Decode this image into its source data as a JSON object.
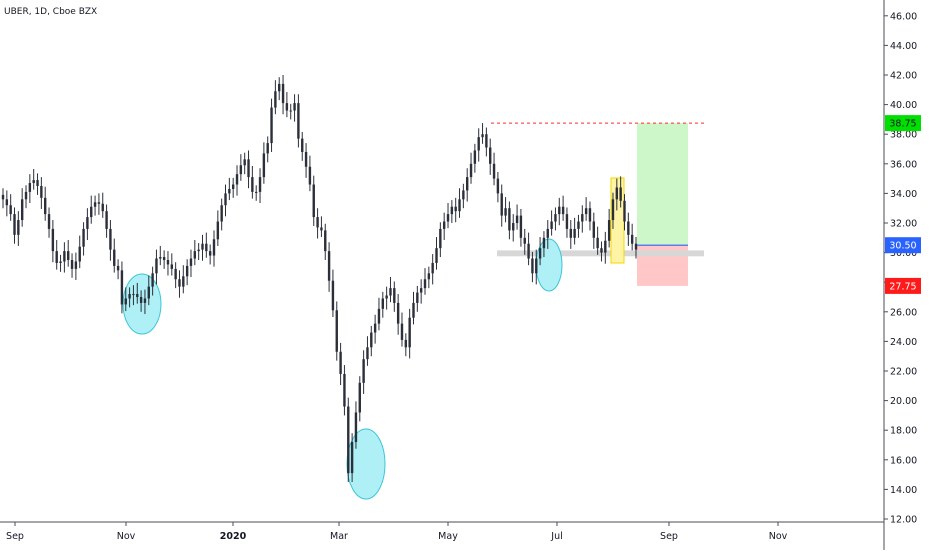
{
  "header": {
    "title": "UBER, 1D, Cboe BZX"
  },
  "colors": {
    "background": "#ffffff",
    "candle": "#2b2f3a",
    "axis_text": "#131722",
    "axis_line": "#4a4e5a",
    "target_label_bg": "#00e000",
    "price_label_bg": "#2962ff",
    "stop_label_bg": "#ff1a1a",
    "profit_zone": "#cdf7c8",
    "loss_zone": "#ffc7c7",
    "ellipse_fill": "#aef0f5",
    "ellipse_stroke": "#3ac6d6",
    "highlight_fill": "#fff3a6",
    "highlight_stroke": "#f2d800",
    "support_band": "#d7d7d7",
    "resistance_line": "#ff2a2a",
    "entry_line": "#2962ff"
  },
  "chart_data": {
    "type": "candlestick",
    "symbol": "UBER",
    "interval": "1D",
    "exchange": "Cboe BZX",
    "ylim": [
      12,
      47
    ],
    "y_ticks": [
      "12.00",
      "14.00",
      "16.00",
      "18.00",
      "20.00",
      "22.00",
      "24.00",
      "26.00",
      "28.00",
      "30.00",
      "32.00",
      "34.00",
      "36.00",
      "38.00",
      "40.00",
      "42.00",
      "44.00",
      "46.00"
    ],
    "x_labels": [
      {
        "label": "Sep",
        "bold": false
      },
      {
        "label": "Nov",
        "bold": false
      },
      {
        "label": "2020",
        "bold": true
      },
      {
        "label": "Mar",
        "bold": false
      },
      {
        "label": "May",
        "bold": false
      },
      {
        "label": "Jul",
        "bold": false
      },
      {
        "label": "Sep",
        "bold": false
      },
      {
        "label": "Nov",
        "bold": false
      }
    ],
    "price_labels": {
      "target": "38.75",
      "current": "30.50",
      "stop": "27.75"
    },
    "levels": {
      "resistance": 38.75,
      "support_low": 29.75,
      "support_high": 30.15,
      "entry": 30.5,
      "target": 38.75,
      "stop": 27.75
    },
    "closes": [
      33.6,
      33.2,
      32.6,
      31.2,
      32.2,
      33.6,
      34.1,
      34.7,
      34.9,
      34.5,
      33.7,
      32.6,
      31.6,
      30.1,
      29.3,
      29.4,
      30.1,
      29.5,
      28.9,
      29.4,
      30.4,
      31.6,
      32.4,
      33.1,
      33.4,
      33.3,
      32.8,
      31.6,
      30.2,
      29.1,
      28.8,
      26.5,
      26.9,
      27.2,
      27.2,
      27.0,
      26.6,
      26.9,
      27.7,
      28.6,
      29.6,
      29.7,
      29.5,
      29.2,
      28.9,
      28.2,
      27.7,
      28.4,
      29.1,
      29.6,
      30.1,
      30.2,
      30.6,
      30.1,
      29.8,
      30.9,
      32.1,
      33.2,
      34.0,
      34.3,
      34.6,
      35.3,
      35.9,
      36.3,
      35.1,
      34.1,
      34.1,
      35.1,
      36.7,
      37.4,
      39.8,
      40.9,
      41.4,
      40.1,
      39.6,
      39.6,
      40.1,
      37.7,
      36.8,
      35.8,
      34.6,
      32.4,
      31.7,
      31.5,
      30.1,
      28.1,
      26.1,
      23.3,
      21.8,
      19.6,
      15.1,
      17.2,
      19.2,
      21.2,
      22.8,
      23.6,
      24.6,
      25.2,
      26.2,
      26.9,
      27.1,
      27.6,
      26.6,
      25.2,
      24.1,
      23.6,
      25.6,
      26.6,
      27.3,
      27.6,
      28.2,
      28.6,
      29.3,
      30.3,
      31.6,
      32.1,
      32.6,
      33.1,
      32.8,
      33.6,
      34.2,
      35.1,
      36.0,
      36.9,
      37.8,
      38.0,
      37.1,
      36.0,
      35.0,
      34.0,
      32.5,
      33.0,
      31.5,
      32.0,
      32.5,
      31.0,
      30.6,
      29.6,
      28.6,
      29.6,
      30.3,
      31.0,
      31.6,
      32.1,
      32.6,
      33.1,
      32.6,
      31.6,
      31.0,
      31.6,
      32.1,
      32.6,
      33.0,
      32.1,
      31.0,
      30.3,
      30.0,
      30.8,
      32.2,
      33.6,
      34.4,
      33.5,
      32.1,
      31.2,
      30.6,
      30.2
    ]
  },
  "annotations": {
    "ellipses": [
      "nov-dip-circle",
      "march-low-circle",
      "june-dip-circle"
    ],
    "highlight": "july-breakout-box",
    "position_tool": "long-position"
  }
}
